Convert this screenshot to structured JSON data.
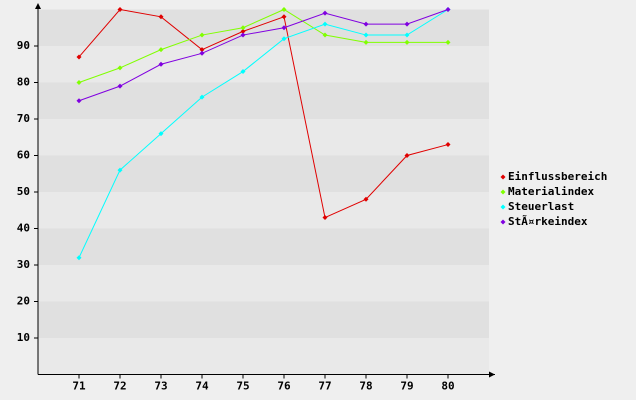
{
  "chart_data": {
    "type": "line",
    "x": [
      71,
      72,
      73,
      74,
      75,
      76,
      77,
      78,
      79,
      80
    ],
    "xlim": [
      70,
      81
    ],
    "xticks": [
      71,
      72,
      73,
      74,
      75,
      76,
      77,
      78,
      79,
      80
    ],
    "ylim": [
      0,
      100
    ],
    "yticks": [
      10,
      20,
      30,
      40,
      50,
      60,
      70,
      80,
      90
    ],
    "grid": true,
    "legend": "right",
    "series": [
      {
        "name": "Einflussbereich",
        "color": "#e00000",
        "values": [
          87,
          100,
          98,
          89,
          94,
          98,
          43,
          48,
          60,
          63
        ]
      },
      {
        "name": "Materialindex",
        "color": "#80ff00",
        "values": [
          80,
          84,
          89,
          93,
          95,
          100,
          93,
          91,
          91,
          91
        ]
      },
      {
        "name": "Steuerlast",
        "color": "#00ffff",
        "values": [
          32,
          56,
          66,
          76,
          83,
          92,
          96,
          93,
          93,
          100
        ]
      },
      {
        "name": "StÃ¤rkeindex",
        "color": "#8000e0",
        "values": [
          75,
          79,
          85,
          88,
          93,
          95,
          99,
          96,
          96,
          100
        ]
      }
    ]
  }
}
